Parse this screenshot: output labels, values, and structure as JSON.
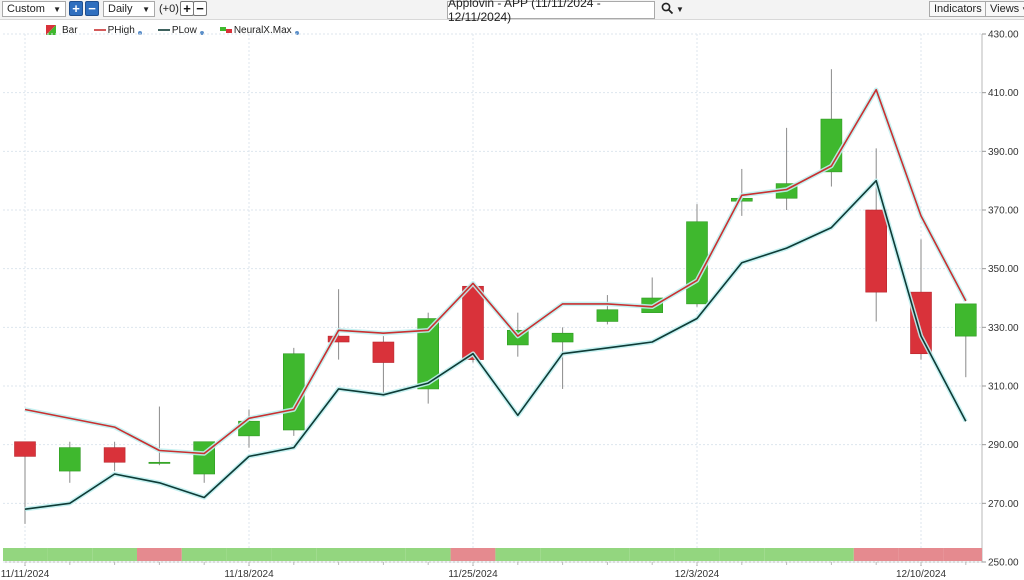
{
  "toolbar": {
    "range_select": "Custom",
    "plus": "+",
    "minus": "−",
    "interval_select": "Daily",
    "offset": "(+0)",
    "chart_title": "Applovin - APP (11/11/2024 - 12/11/2024)",
    "indicators_label": "Indicators",
    "views_label": "Views"
  },
  "legend": {
    "bar": "Bar",
    "phigh": "PHigh",
    "plow": "PLow",
    "neural": "NeuralX.Max"
  },
  "colors": {
    "up": "#3fb82e",
    "down": "#d9323a",
    "phigh": "#c93030",
    "plow": "#0e3b36",
    "glow": "#bff0f0",
    "band_green": "#93d67f",
    "band_red": "#e58a8f"
  },
  "chart_data": {
    "type": "candlestick",
    "title": "Applovin - APP (11/11/2024 - 12/11/2024)",
    "ylim": [
      250,
      430
    ],
    "y_ticks": [
      "430.00",
      "410.00",
      "390.00",
      "370.00",
      "350.00",
      "330.00",
      "310.00",
      "290.00",
      "270.00",
      "250.00"
    ],
    "x_tick_labels": [
      {
        "index": 0,
        "label": "11/11/2024"
      },
      {
        "index": 5,
        "label": "11/18/2024"
      },
      {
        "index": 10,
        "label": "11/25/2024"
      },
      {
        "index": 15,
        "label": "12/3/2024"
      },
      {
        "index": 20,
        "label": "12/10/2024"
      }
    ],
    "candles": [
      {
        "open": 291,
        "high": 291,
        "low": 263,
        "close": 286
      },
      {
        "open": 281,
        "high": 291,
        "low": 277,
        "close": 289
      },
      {
        "open": 289,
        "high": 291,
        "low": 281,
        "close": 284
      },
      {
        "open": 284,
        "high": 303,
        "low": 283,
        "close": 284
      },
      {
        "open": 280,
        "high": 291,
        "low": 277,
        "close": 291
      },
      {
        "open": 293,
        "high": 302,
        "low": 289,
        "close": 298
      },
      {
        "open": 295,
        "high": 323,
        "low": 293,
        "close": 321
      },
      {
        "open": 327,
        "high": 343,
        "low": 319,
        "close": 325
      },
      {
        "open": 325,
        "high": 327,
        "low": 307,
        "close": 318
      },
      {
        "open": 309,
        "high": 335,
        "low": 304,
        "close": 333
      },
      {
        "open": 344,
        "high": 344,
        "low": 318,
        "close": 319
      },
      {
        "open": 324,
        "high": 335,
        "low": 320,
        "close": 329
      },
      {
        "open": 325,
        "high": 330,
        "low": 309,
        "close": 328
      },
      {
        "open": 332,
        "high": 341,
        "low": 331,
        "close": 336
      },
      {
        "open": 335,
        "high": 347,
        "low": 335,
        "close": 340
      },
      {
        "open": 338,
        "high": 372,
        "low": 337,
        "close": 366
      },
      {
        "open": 373,
        "high": 384,
        "low": 368,
        "close": 374
      },
      {
        "open": 374,
        "high": 398,
        "low": 370,
        "close": 379
      },
      {
        "open": 383,
        "high": 418,
        "low": 378,
        "close": 401
      },
      {
        "open": 370,
        "high": 391,
        "low": 332,
        "close": 342
      },
      {
        "open": 342,
        "high": 360,
        "low": 319,
        "close": 321
      },
      {
        "open": 327,
        "high": 338,
        "low": 313,
        "close": 338
      }
    ],
    "series": [
      {
        "name": "PHigh",
        "values": [
          302,
          null,
          296,
          288,
          287,
          299,
          302,
          329,
          328,
          329,
          345,
          327,
          338,
          338,
          337,
          346,
          375,
          377,
          385,
          411,
          368,
          339
        ]
      },
      {
        "name": "PLow",
        "values": [
          268,
          270,
          280,
          277,
          272,
          286,
          289,
          309,
          307,
          311,
          321,
          300,
          321,
          323,
          325,
          333,
          352,
          357,
          364,
          380,
          327,
          298
        ]
      }
    ],
    "signal_band": [
      "green",
      "green",
      "green",
      "red",
      "green",
      "green",
      "green",
      "green",
      "green",
      "green",
      "red",
      "green",
      "green",
      "green",
      "green",
      "green",
      "green",
      "green",
      "green",
      "red",
      "red",
      "red"
    ]
  }
}
